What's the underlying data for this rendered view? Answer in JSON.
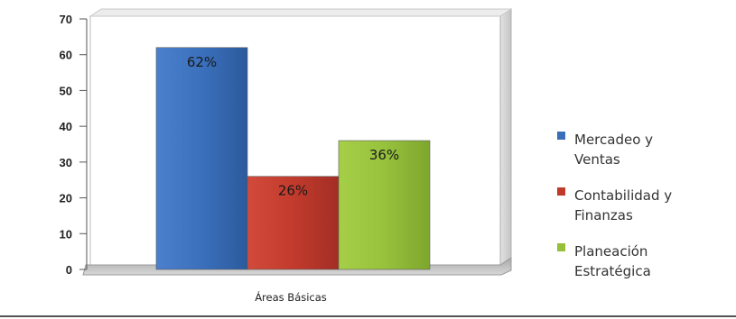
{
  "chart_data": {
    "type": "bar",
    "categories": [
      "Áreas Básicas"
    ],
    "series": [
      {
        "name": "Mercadeo y Ventas",
        "values": [
          62
        ],
        "label": "62%",
        "color": "#3a6fb8"
      },
      {
        "name": "Contabilidad y Finanzas",
        "values": [
          26
        ],
        "label": "26%",
        "color": "#c0392b"
      },
      {
        "name": "Planeación Estratégica",
        "values": [
          36
        ],
        "label": "36%",
        "color": "#96c03a"
      }
    ],
    "title": "",
    "xlabel": "",
    "ylabel": "",
    "ylim": [
      0,
      70
    ],
    "yticks": [
      "0",
      "10",
      "20",
      "30",
      "40",
      "50",
      "60",
      "70"
    ],
    "grid": false,
    "legend_position": "right"
  },
  "legend": {
    "items": [
      {
        "line1": "Mercadeo y",
        "line2": "Ventas"
      },
      {
        "line1": "Contabilidad y",
        "line2": "Finanzas"
      },
      {
        "line1": "Planeación",
        "line2": "Estratégica"
      }
    ]
  }
}
